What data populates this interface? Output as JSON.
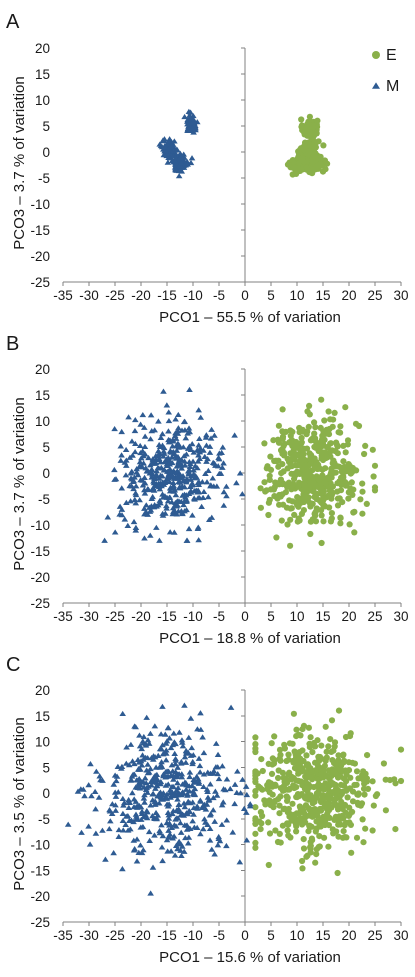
{
  "colors": {
    "E": "#8ab04a",
    "M": "#2e5b92",
    "axis": "#808080",
    "text": "#1a1a1a"
  },
  "markers": {
    "E": "circle",
    "M": "triangle"
  },
  "chart_data": [
    {
      "panel_label": "A",
      "type": "scatter",
      "xlabel": "PCO1 – 55.5 % of variation",
      "ylabel": "PCO3 – 3.7 % of variation",
      "xlim": [
        -35,
        30
      ],
      "ylim": [
        -25,
        20
      ],
      "xticks": [
        -35,
        -30,
        -25,
        -20,
        -15,
        -10,
        -5,
        0,
        5,
        10,
        15,
        20,
        25,
        30
      ],
      "yticks": [
        -25,
        -20,
        -15,
        -10,
        -5,
        0,
        5,
        10,
        15,
        20
      ],
      "grid": false,
      "legend": {
        "placement": "top-right",
        "entries": [
          "E",
          "M"
        ]
      },
      "series": [
        {
          "name": "E",
          "marker": "circle",
          "clusters": [
            {
              "cx": 12.5,
              "cy": 4.5,
              "sx": 0.7,
              "sy": 0.9,
              "n": 80
            },
            {
              "cx": 12.5,
              "cy": 0.5,
              "sx": 0.8,
              "sy": 1.0,
              "n": 90
            },
            {
              "cx": 10.5,
              "cy": -2.5,
              "sx": 0.9,
              "sy": 0.8,
              "n": 90
            },
            {
              "cx": 13.5,
              "cy": -2.5,
              "sx": 0.9,
              "sy": 0.8,
              "n": 90
            }
          ]
        },
        {
          "name": "M",
          "marker": "triangle",
          "clusters": [
            {
              "cx": -10.2,
              "cy": 5.5,
              "sx": 0.55,
              "sy": 0.8,
              "n": 70
            },
            {
              "cx": -14.5,
              "cy": 0.5,
              "sx": 0.7,
              "sy": 0.9,
              "n": 90
            },
            {
              "cx": -12.5,
              "cy": -2.0,
              "sx": 0.8,
              "sy": 0.8,
              "n": 90
            }
          ]
        }
      ]
    },
    {
      "panel_label": "B",
      "type": "scatter",
      "xlabel": "PCO1 – 18.8 % of variation",
      "ylabel": "PCO3 – 3.7 % of variation",
      "xlim": [
        -35,
        30
      ],
      "ylim": [
        -25,
        20
      ],
      "xticks": [
        -35,
        -30,
        -25,
        -20,
        -15,
        -10,
        -5,
        0,
        5,
        10,
        15,
        20,
        25,
        30
      ],
      "yticks": [
        -25,
        -20,
        -15,
        -10,
        -5,
        0,
        5,
        10,
        15,
        20
      ],
      "grid": false,
      "series": [
        {
          "name": "E",
          "marker": "circle",
          "clusters": [
            {
              "cx": 13.0,
              "cy": 0.0,
              "sx": 4.5,
              "sy": 5.0,
              "n": 450,
              "xrange": [
                3,
                25
              ],
              "yrange": [
                -14,
                16
              ]
            }
          ]
        },
        {
          "name": "M",
          "marker": "triangle",
          "clusters": [
            {
              "cx": -14.0,
              "cy": 0.0,
              "sx": 5.0,
              "sy": 5.0,
              "n": 450,
              "xrange": [
                -27,
                1
              ],
              "yrange": [
                -13,
                16
              ]
            }
          ]
        }
      ]
    },
    {
      "panel_label": "C",
      "type": "scatter",
      "xlabel": "PCO1 – 15.6 % of variation",
      "ylabel": "PCO3 – 3.5 % of variation",
      "xlim": [
        -35,
        30
      ],
      "ylim": [
        -25,
        20
      ],
      "xticks": [
        -35,
        -30,
        -25,
        -20,
        -15,
        -10,
        -5,
        0,
        5,
        10,
        15,
        20,
        25,
        30
      ],
      "yticks": [
        -25,
        -20,
        -15,
        -10,
        -5,
        0,
        5,
        10,
        15,
        20
      ],
      "grid": false,
      "series": [
        {
          "name": "E",
          "marker": "circle",
          "clusters": [
            {
              "cx": 13.0,
              "cy": 0.0,
              "sx": 6.0,
              "sy": 6.0,
              "n": 500,
              "xrange": [
                2,
                30
              ],
              "yrange": [
                -18,
                16
              ]
            }
          ]
        },
        {
          "name": "M",
          "marker": "triangle",
          "clusters": [
            {
              "cx": -15.0,
              "cy": 0.0,
              "sx": 6.5,
              "sy": 6.0,
              "n": 500,
              "xrange": [
                -34,
                1
              ],
              "yrange": [
                -20,
                17
              ]
            }
          ]
        }
      ]
    }
  ]
}
